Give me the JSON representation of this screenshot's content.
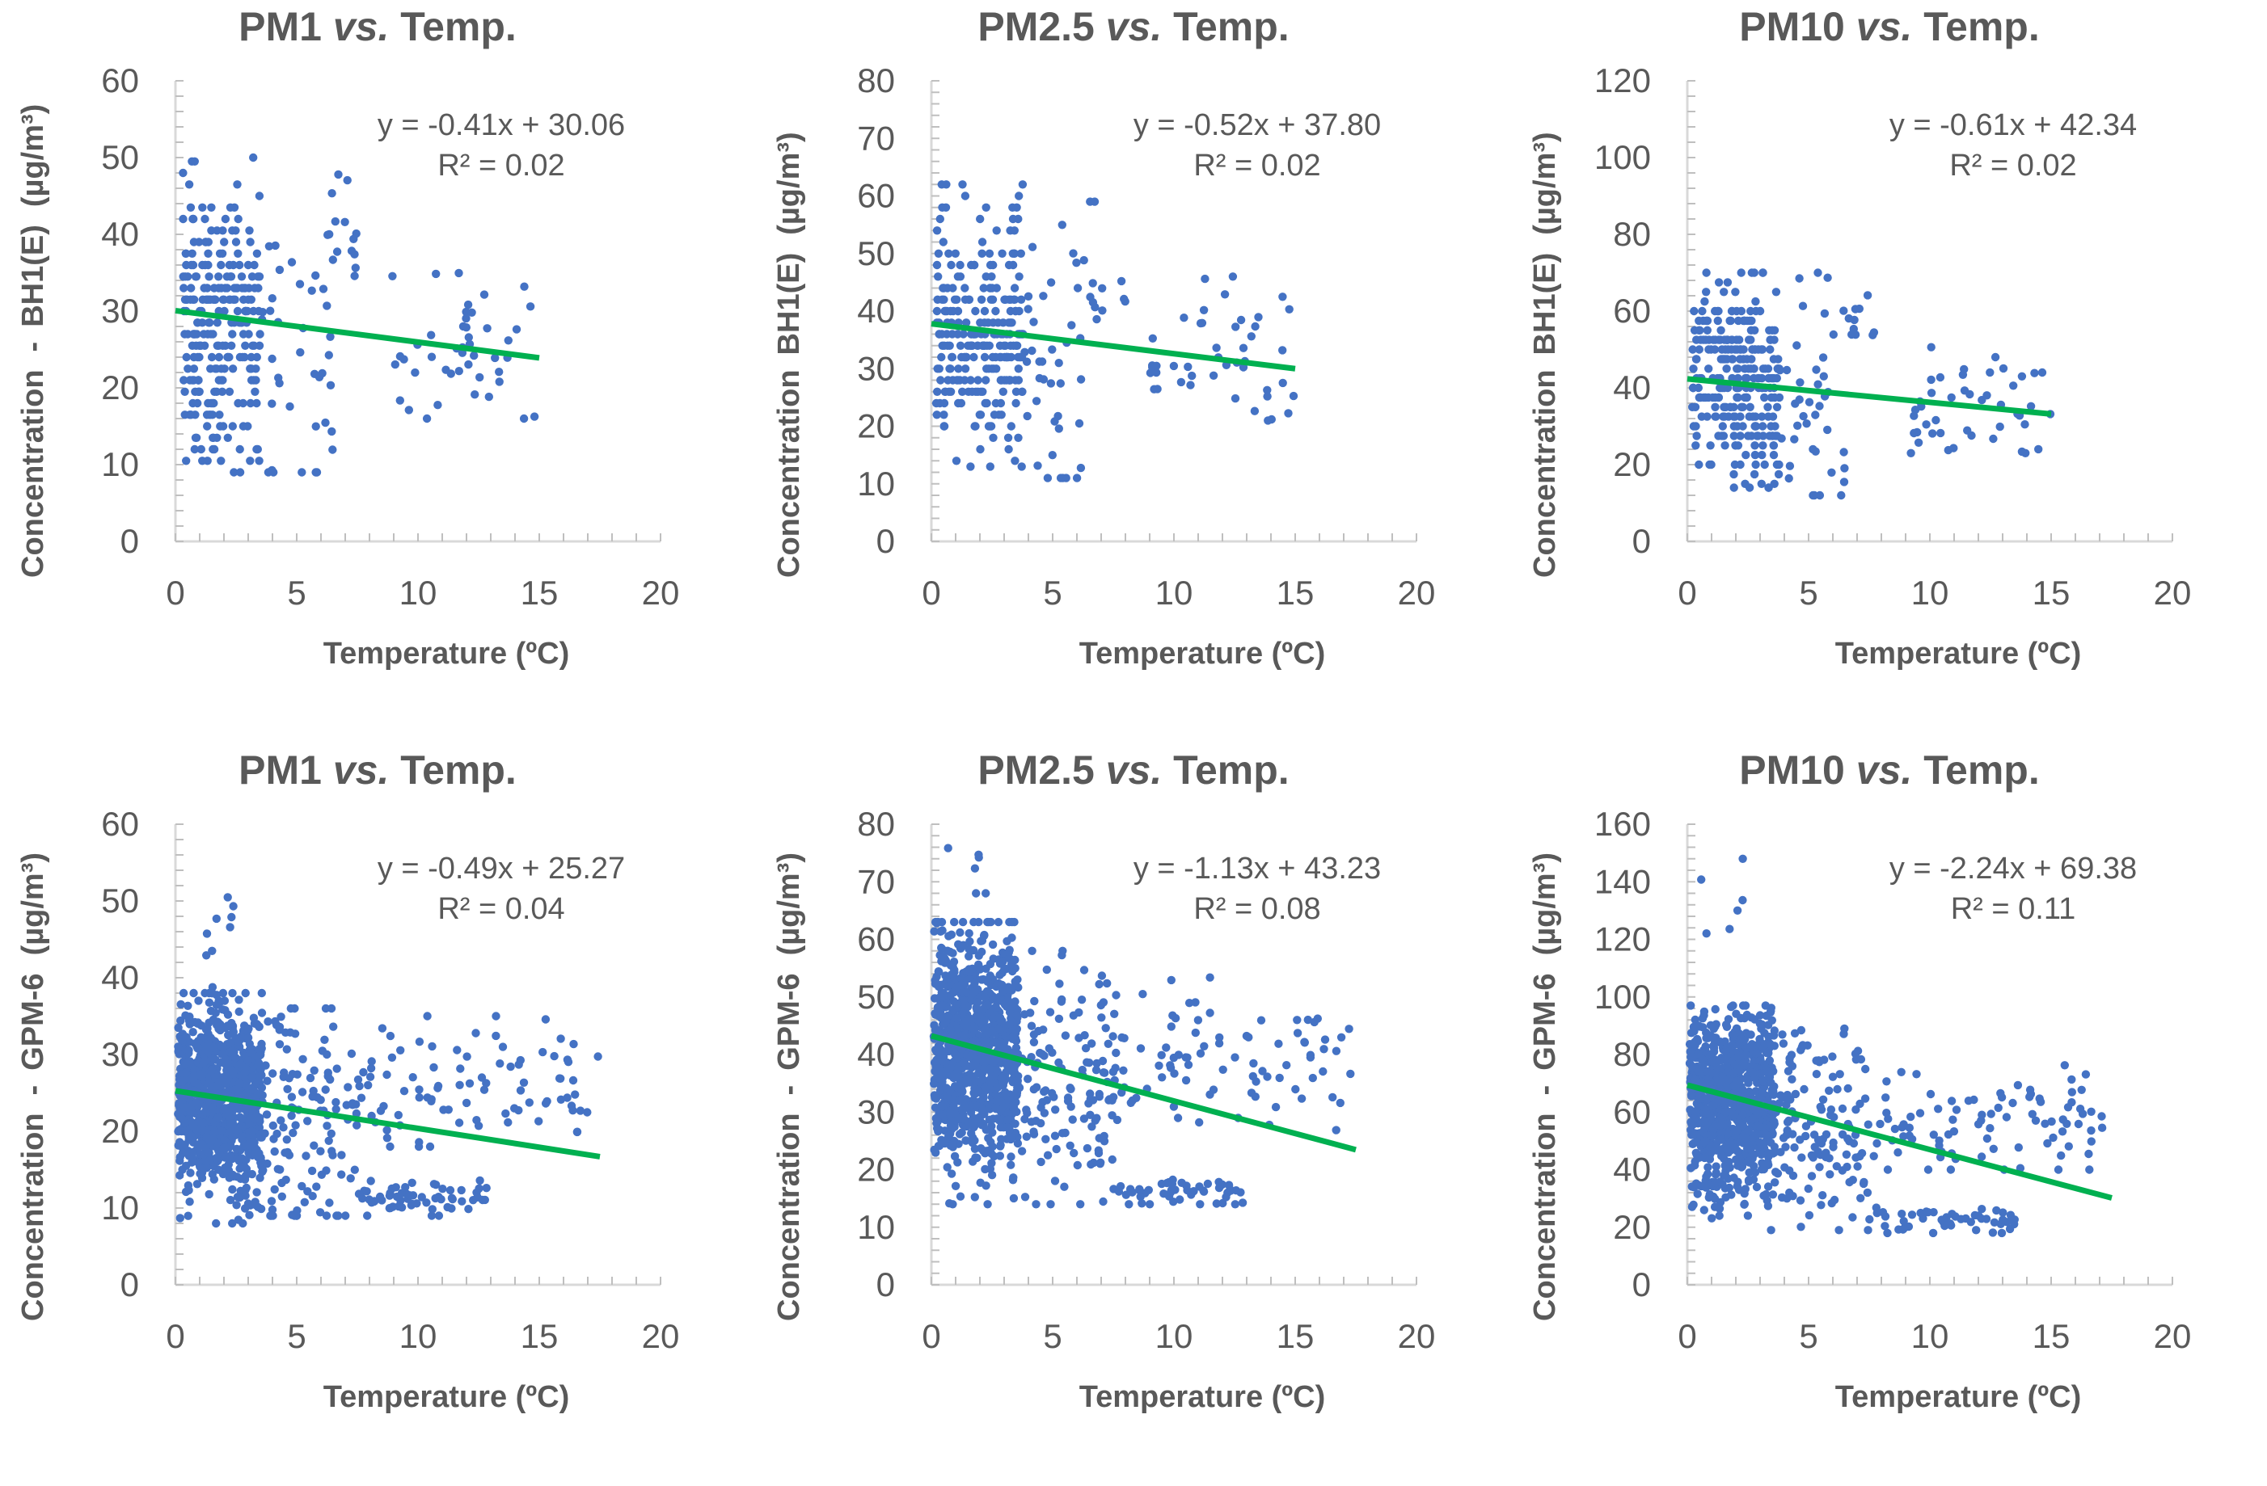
{
  "figure": {
    "ylabel_prefix": "Concentration",
    "ylabel_dash": "-",
    "unit": "(µg/m³)"
  },
  "chart_data": [
    {
      "type": "scatter",
      "title_main": "PM1",
      "title_vs": "vs.",
      "title_tail": "Temp.",
      "xlabel": "Temperature (ºC)",
      "ylabel_device": "BH1(E)",
      "show_dash": true,
      "xlim": [
        0,
        20
      ],
      "xticks": [
        "0",
        "5",
        "10",
        "15",
        "20"
      ],
      "ylim": [
        0,
        60
      ],
      "yticks": [
        "0",
        "10",
        "20",
        "30",
        "40",
        "50",
        "60"
      ],
      "equation": "y = -0.41x + 30.06",
      "r2": "R² = 0.02",
      "trend": {
        "slope": -0.41,
        "intercept": 30.06,
        "x_range": [
          0,
          15
        ]
      },
      "point_cloud": {
        "seed": 11,
        "clusters": [
          {
            "n": 260,
            "x": [
              0.3,
              3.5
            ],
            "ycenter": 28,
            "ysd": 9,
            "ymin": 9,
            "ymax": 50,
            "y_step": 1.5
          },
          {
            "n": 40,
            "x": [
              3.5,
              6.5
            ],
            "ycenter": 24,
            "ysd": 13,
            "ymin": 9,
            "ymax": 50
          },
          {
            "n": 12,
            "x": [
              6.3,
              7.8
            ],
            "ycenter": 40,
            "ysd": 4,
            "ymin": 33,
            "ymax": 48
          },
          {
            "n": 45,
            "x": [
              8.8,
              15
            ],
            "ycenter": 25,
            "ysd": 5,
            "ymin": 16,
            "ymax": 37
          }
        ]
      }
    },
    {
      "type": "scatter",
      "title_main": "PM2.5",
      "title_vs": "vs.",
      "title_tail": "Temp.",
      "xlabel": "Temperature (ºC)",
      "ylabel_device": "BH1(E)",
      "show_dash": false,
      "xlim": [
        0,
        20
      ],
      "xticks": [
        "0",
        "5",
        "10",
        "15",
        "20"
      ],
      "ylim": [
        0,
        80
      ],
      "yticks": [
        "0",
        "10",
        "20",
        "30",
        "40",
        "50",
        "60",
        "70",
        "80"
      ],
      "equation": "y = -0.52x + 37.80",
      "r2": "R² = 0.02",
      "trend": {
        "slope": -0.52,
        "intercept": 37.8,
        "x_range": [
          0,
          15
        ]
      },
      "point_cloud": {
        "seed": 23,
        "clusters": [
          {
            "n": 270,
            "x": [
              0.2,
              3.8
            ],
            "ycenter": 36,
            "ysd": 11,
            "ymin": 13,
            "ymax": 62,
            "y_step": 2
          },
          {
            "n": 40,
            "x": [
              3.8,
              6.5
            ],
            "ycenter": 32,
            "ysd": 14,
            "ymin": 11,
            "ymax": 62
          },
          {
            "n": 12,
            "x": [
              6.5,
              8
            ],
            "ycenter": 48,
            "ysd": 6,
            "ymin": 38,
            "ymax": 59
          },
          {
            "n": 45,
            "x": [
              9,
              15
            ],
            "ycenter": 33,
            "ysd": 6,
            "ymin": 21,
            "ymax": 46
          }
        ]
      }
    },
    {
      "type": "scatter",
      "title_main": "PM10",
      "title_vs": "vs.",
      "title_tail": "Temp.",
      "xlabel": "Temperature (ºC)",
      "ylabel_device": "BH1(E)",
      "show_dash": false,
      "xlim": [
        0,
        20
      ],
      "xticks": [
        "0",
        "5",
        "10",
        "15",
        "20"
      ],
      "ylim": [
        0,
        120
      ],
      "yticks": [
        "0",
        "20",
        "40",
        "60",
        "80",
        "100",
        "120"
      ],
      "equation": "y = -0.61x + 42.34",
      "r2": "R² = 0.02",
      "trend": {
        "slope": -0.61,
        "intercept": 42.34,
        "x_range": [
          0,
          15
        ]
      },
      "point_cloud": {
        "seed": 37,
        "clusters": [
          {
            "n": 280,
            "x": [
              0.2,
              3.8
            ],
            "ycenter": 42,
            "ysd": 13,
            "ymin": 14,
            "ymax": 70,
            "y_step": 2.5
          },
          {
            "n": 40,
            "x": [
              3.8,
              6.5
            ],
            "ycenter": 38,
            "ysd": 16,
            "ymin": 12,
            "ymax": 70
          },
          {
            "n": 10,
            "x": [
              6.5,
              7.8
            ],
            "ycenter": 57,
            "ysd": 6,
            "ymin": 45,
            "ymax": 67
          },
          {
            "n": 45,
            "x": [
              9,
              15
            ],
            "ycenter": 37,
            "ysd": 7,
            "ymin": 23,
            "ymax": 52
          }
        ]
      }
    },
    {
      "type": "scatter",
      "title_main": "PM1",
      "title_vs": "vs.",
      "title_tail": "Temp.",
      "xlabel": "Temperature (ºC)",
      "ylabel_device": "GPM-6",
      "show_dash": true,
      "xlim": [
        0,
        20
      ],
      "xticks": [
        "0",
        "5",
        "10",
        "15",
        "20"
      ],
      "ylim": [
        0,
        60
      ],
      "yticks": [
        "0",
        "10",
        "20",
        "30",
        "40",
        "50",
        "60"
      ],
      "equation": "y = -0.49x + 25.27",
      "r2": "R² = 0.04",
      "trend": {
        "slope": -0.49,
        "intercept": 25.27,
        "x_range": [
          0,
          17.5
        ]
      },
      "point_cloud": {
        "seed": 41,
        "clusters": [
          {
            "n": 900,
            "x": [
              0.1,
              3.6
            ],
            "ycenter": 24,
            "ysd": 6,
            "ymin": 8,
            "ymax": 38
          },
          {
            "n": 12,
            "x": [
              1.2,
              2.4
            ],
            "ycenter": 42,
            "ysd": 5,
            "ymin": 37,
            "ymax": 55
          },
          {
            "n": 120,
            "x": [
              3.6,
              7.5
            ],
            "ycenter": 22,
            "ysd": 8,
            "ymin": 9,
            "ymax": 36
          },
          {
            "n": 60,
            "x": [
              7.5,
              13
            ],
            "ycenter": 11,
            "ysd": 1.2,
            "ymin": 9,
            "ymax": 14
          },
          {
            "n": 90,
            "x": [
              7.5,
              17.5
            ],
            "ycenter": 26,
            "ysd": 4,
            "ymin": 18,
            "ymax": 35
          }
        ]
      }
    },
    {
      "type": "scatter",
      "title_main": "PM2.5",
      "title_vs": "vs.",
      "title_tail": "Temp.",
      "xlabel": "Temperature (ºC)",
      "ylabel_device": "GPM-6",
      "show_dash": true,
      "xlim": [
        0,
        20
      ],
      "xticks": [
        "0",
        "5",
        "10",
        "15",
        "20"
      ],
      "ylim": [
        0,
        80
      ],
      "yticks": [
        "0",
        "10",
        "20",
        "30",
        "40",
        "50",
        "60",
        "70",
        "80"
      ],
      "equation": "y = -1.13x + 43.23",
      "r2": "R² = 0.08",
      "trend": {
        "slope": -1.13,
        "intercept": 43.23,
        "x_range": [
          0,
          17.5
        ]
      },
      "point_cloud": {
        "seed": 53,
        "clusters": [
          {
            "n": 950,
            "x": [
              0.1,
              3.6
            ],
            "ycenter": 40,
            "ysd": 10,
            "ymin": 14,
            "ymax": 63
          },
          {
            "n": 6,
            "x": [
              0.6,
              2.6
            ],
            "ycenter": 72,
            "ysd": 3,
            "ymin": 68,
            "ymax": 76
          },
          {
            "n": 130,
            "x": [
              3.6,
              7.5
            ],
            "ycenter": 36,
            "ysd": 11,
            "ymin": 14,
            "ymax": 58
          },
          {
            "n": 50,
            "x": [
              7.5,
              13
            ],
            "ycenter": 16,
            "ysd": 1.5,
            "ymin": 14,
            "ymax": 20
          },
          {
            "n": 90,
            "x": [
              7.5,
              17.5
            ],
            "ycenter": 38,
            "ysd": 6,
            "ymin": 26,
            "ymax": 55
          }
        ]
      }
    },
    {
      "type": "scatter",
      "title_main": "PM10",
      "title_vs": "vs.",
      "title_tail": "Temp.",
      "xlabel": "Temperature (ºC)",
      "ylabel_device": "GPM-6",
      "show_dash": true,
      "xlim": [
        0,
        20
      ],
      "xticks": [
        "0",
        "5",
        "10",
        "15",
        "20"
      ],
      "ylim": [
        0,
        160
      ],
      "yticks": [
        "0",
        "20",
        "40",
        "60",
        "80",
        "100",
        "120",
        "140",
        "160"
      ],
      "equation": "y = -2.24x + 69.38",
      "r2": "R² = 0.11",
      "trend": {
        "slope": -2.24,
        "intercept": 69.38,
        "x_range": [
          0,
          17.5
        ]
      },
      "point_cloud": {
        "seed": 67,
        "clusters": [
          {
            "n": 950,
            "x": [
              0.1,
              3.6
            ],
            "ycenter": 62,
            "ysd": 15,
            "ymin": 19,
            "ymax": 97
          },
          {
            "n": 6,
            "x": [
              0.5,
              2.3
            ],
            "ycenter": 128,
            "ysd": 10,
            "ymin": 115,
            "ymax": 148
          },
          {
            "n": 130,
            "x": [
              3.6,
              7.5
            ],
            "ycenter": 55,
            "ysd": 17,
            "ymin": 19,
            "ymax": 90
          },
          {
            "n": 50,
            "x": [
              7.5,
              13.5
            ],
            "ycenter": 22,
            "ysd": 2.5,
            "ymin": 18,
            "ymax": 30
          },
          {
            "n": 90,
            "x": [
              7.5,
              17.5
            ],
            "ycenter": 57,
            "ysd": 9,
            "ymin": 40,
            "ymax": 80
          }
        ]
      }
    }
  ]
}
